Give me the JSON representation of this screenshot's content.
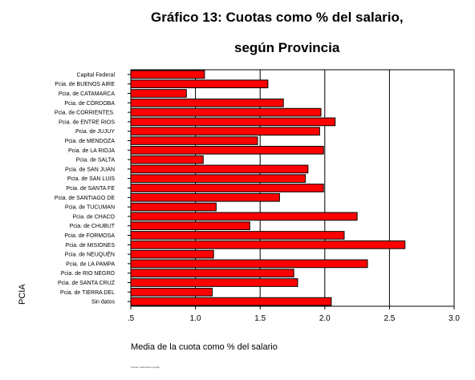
{
  "chart_data": {
    "type": "bar",
    "orientation": "horizontal",
    "title_line1": "Gráfico 13: Cuotas como % del salario,",
    "title_line2": "según Provincia",
    "xlabel": "Media de la cuota como % del salario",
    "ylabel": "PCIA",
    "source_note": "Fuente: elaboración propia",
    "xlim": [
      0.5,
      3.0
    ],
    "xticks": [
      ".5",
      "1.0",
      "1.5",
      "2.0",
      "2.5",
      "3.0"
    ],
    "xtick_values": [
      0.5,
      1.0,
      1.5,
      2.0,
      2.5,
      3.0
    ],
    "gridlines": [
      1.0,
      1.5,
      2.0,
      2.5
    ],
    "bar_color": "#ff0000",
    "categories": [
      "Capital Federal",
      "Pcia. de BUENOS AIRE",
      "Pcia. de CATAMARCA",
      "Pcia. de CÓRDOBA",
      "Pcia. de CORRIENTES.",
      "Pcia. de ENTRE RIOS",
      "Pcia. de JUJUY",
      "Pcia. de MENDOZA",
      "Pcia. de LA RIOJA",
      "Pcia. de SALTA",
      "Pcia. de SAN JUAN",
      "Pcia. de SAN LUIS",
      "Pcia. de SANTA FE",
      "Pcia. de SANTIAGO DE",
      "Pcia. de TUCUMAN",
      "Pcia. de CHACO",
      "Pcia. de CHUBUT",
      "Pcia. de FORMOSA",
      "Pcia. de MISIONES",
      "Pcia. de NEUQUÉN",
      "Pcia. de LA PAMPA",
      "Pcia. de RIO NEGRO",
      "Pcia. de SANTA CRUZ",
      "Pcia. de TIERRA DEL",
      "Sin datos"
    ],
    "values": [
      1.07,
      1.56,
      0.93,
      1.68,
      1.97,
      2.08,
      1.96,
      1.48,
      1.99,
      1.06,
      1.87,
      1.85,
      1.99,
      1.65,
      1.16,
      2.25,
      1.42,
      2.15,
      2.62,
      1.14,
      2.33,
      1.76,
      1.79,
      1.13,
      2.05
    ]
  }
}
